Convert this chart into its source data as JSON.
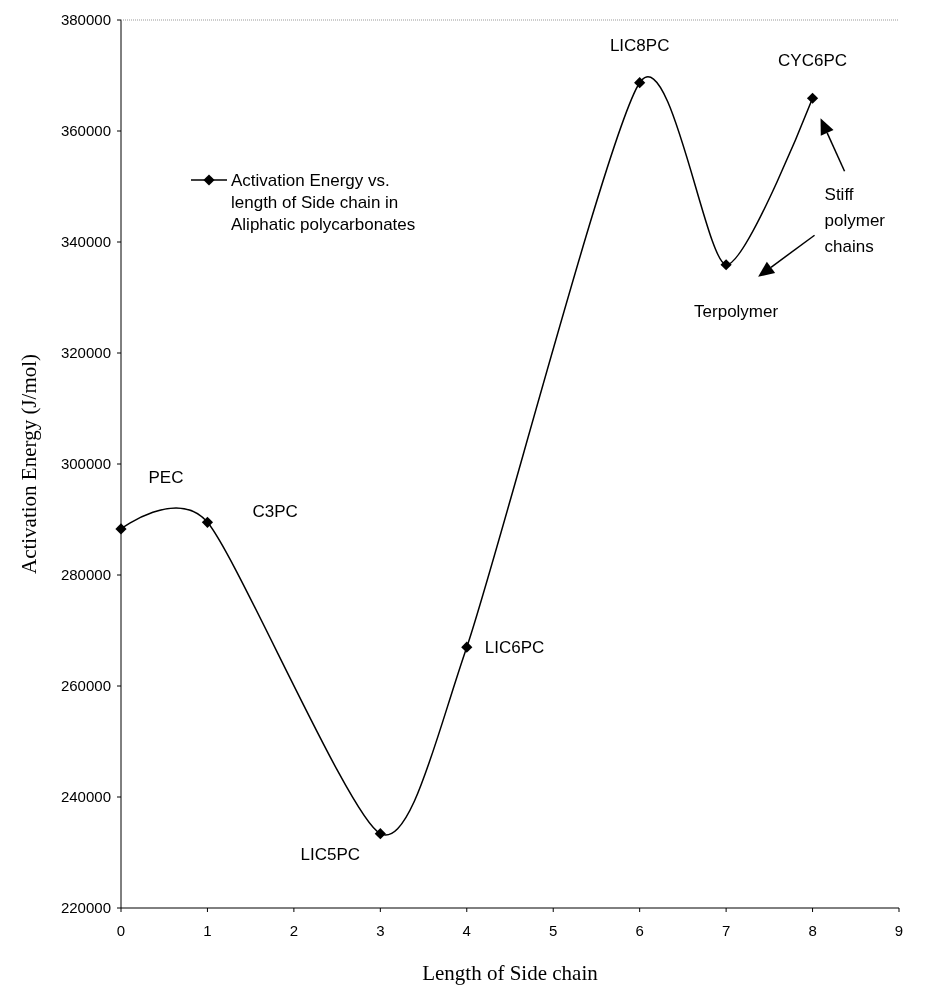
{
  "chart_data": {
    "type": "line",
    "xlabel": "Length of Side chain",
    "ylabel": "Activation Energy (J/mol)",
    "x": [
      0,
      1,
      3,
      4,
      6,
      7,
      8
    ],
    "series": [
      {
        "name": "Activation Energy vs. length of Side chain in Aliphatic polycarbonates",
        "color": "#000000",
        "values": [
          288300,
          289500,
          233400,
          267000,
          368700,
          335900,
          365900
        ]
      }
    ],
    "xlim": [
      0,
      9
    ],
    "xticks": [
      0,
      1,
      2,
      3,
      4,
      5,
      6,
      7,
      8,
      9
    ],
    "ylim": [
      220000,
      380000
    ],
    "yticks": [
      220000,
      240000,
      260000,
      280000,
      300000,
      320000,
      340000,
      360000,
      380000
    ],
    "annotations": [
      {
        "text": "PEC",
        "x": 0,
        "y": 288300
      },
      {
        "text": "C3PC",
        "x": 1,
        "y": 289500
      },
      {
        "text": "LIC5PC",
        "x": 3,
        "y": 233400
      },
      {
        "text": "LIC6PC",
        "x": 4,
        "y": 267000
      },
      {
        "text": "LIC8PC",
        "x": 6,
        "y": 368700
      },
      {
        "text": "CYC6PC",
        "x": 8,
        "y": 365900
      },
      {
        "text": "Terpolymer",
        "x": 7,
        "y": 335900
      },
      "Stiff polymer chains"
    ],
    "legend": "top left",
    "marker": "diamond",
    "line_style": "solid",
    "grid": false
  }
}
